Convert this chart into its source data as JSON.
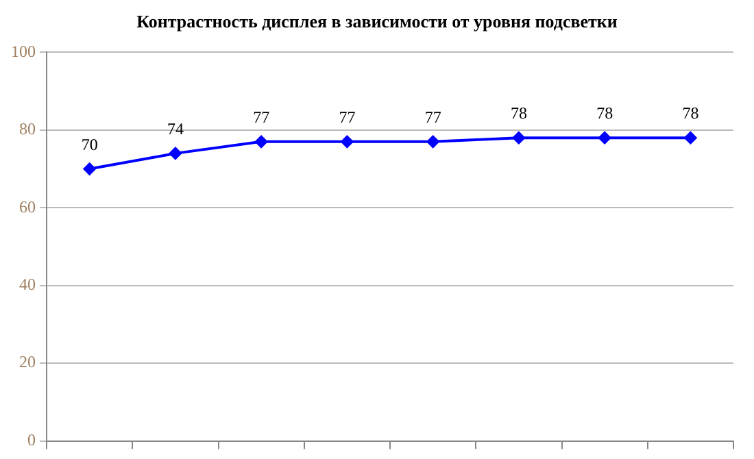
{
  "chart_data": {
    "type": "line",
    "title": "Контрастность дисплея в зависимости от уровня подсветки",
    "categories": [
      null,
      null,
      null,
      null,
      null,
      null,
      null,
      null
    ],
    "series": [
      {
        "color": "#0000ff",
        "values": [
          70,
          74,
          77,
          77,
          77,
          78,
          78,
          78
        ]
      }
    ],
    "ylim": [
      0,
      100
    ],
    "yticks": [
      0,
      20,
      40,
      60,
      80,
      100
    ],
    "grid": "y",
    "marker": "diamond",
    "data_labels": true,
    "legend": false
  }
}
